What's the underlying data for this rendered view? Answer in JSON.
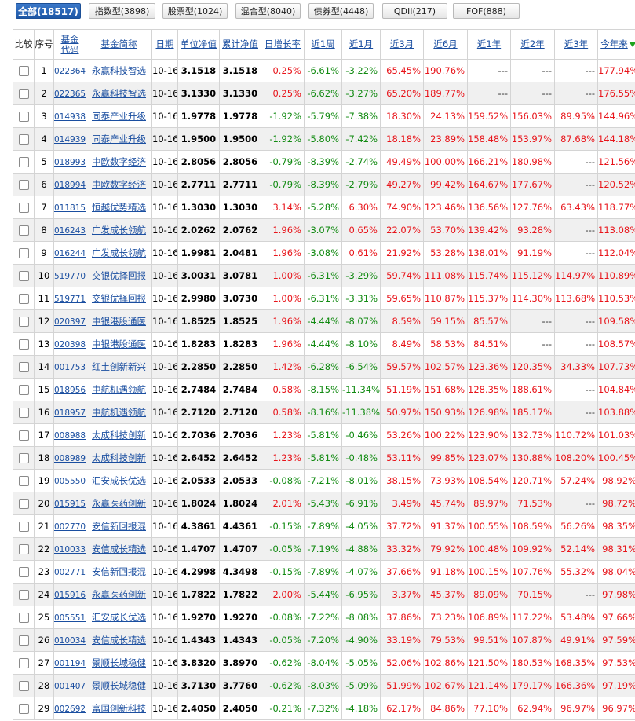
{
  "tabs": [
    {
      "id": "all",
      "label": "全部(18517)",
      "active": true
    },
    {
      "id": "index",
      "label": "指数型(3898)",
      "active": false
    },
    {
      "id": "stock",
      "label": "股票型(1024)",
      "active": false
    },
    {
      "id": "hybrid",
      "label": "混合型(8040)",
      "active": false
    },
    {
      "id": "bond",
      "label": "债券型(4448)",
      "active": false
    },
    {
      "id": "qdii",
      "label": "QDII(217)",
      "active": false
    },
    {
      "id": "fof",
      "label": "FOF(888)",
      "active": false
    }
  ],
  "headers": {
    "compare": "比较",
    "seq": "序号",
    "code": "基金代码",
    "name": "基金简称",
    "date": "日期",
    "nav": "单位净值",
    "acc_nav": "累计净值",
    "daily": "日增长率",
    "w1": "近1周",
    "m1": "近1月",
    "m3": "近3月",
    "m6": "近6月",
    "y1": "近1年",
    "y2": "近2年",
    "y3": "近3年",
    "ytd": "今年来"
  },
  "rows": [
    {
      "seq": "1",
      "code": "022364",
      "name": "永赢科技智选",
      "date": "10-16",
      "nav": "3.1518",
      "acc_nav": "3.1518",
      "daily": "0.25%",
      "w1": "-6.61%",
      "m1": "-3.22%",
      "m3": "65.45%",
      "m6": "190.76%",
      "y1": "---",
      "y2": "---",
      "y3": "---",
      "ytd": "177.94%"
    },
    {
      "seq": "2",
      "code": "022365",
      "name": "永赢科技智选",
      "date": "10-16",
      "nav": "3.1330",
      "acc_nav": "3.1330",
      "daily": "0.25%",
      "w1": "-6.62%",
      "m1": "-3.27%",
      "m3": "65.20%",
      "m6": "189.77%",
      "y1": "---",
      "y2": "---",
      "y3": "---",
      "ytd": "176.55%"
    },
    {
      "seq": "3",
      "code": "014938",
      "name": "同泰产业升级",
      "date": "10-16",
      "nav": "1.9778",
      "acc_nav": "1.9778",
      "daily": "-1.92%",
      "w1": "-5.79%",
      "m1": "-7.38%",
      "m3": "18.30%",
      "m6": "24.13%",
      "y1": "159.52%",
      "y2": "156.03%",
      "y3": "89.95%",
      "ytd": "144.96%"
    },
    {
      "seq": "4",
      "code": "014939",
      "name": "同泰产业升级",
      "date": "10-16",
      "nav": "1.9500",
      "acc_nav": "1.9500",
      "daily": "-1.92%",
      "w1": "-5.80%",
      "m1": "-7.42%",
      "m3": "18.18%",
      "m6": "23.89%",
      "y1": "158.48%",
      "y2": "153.97%",
      "y3": "87.68%",
      "ytd": "144.18%"
    },
    {
      "seq": "5",
      "code": "018993",
      "name": "中欧数字经济",
      "date": "10-16",
      "nav": "2.8056",
      "acc_nav": "2.8056",
      "daily": "-0.79%",
      "w1": "-8.39%",
      "m1": "-2.74%",
      "m3": "49.49%",
      "m6": "100.00%",
      "y1": "166.21%",
      "y2": "180.98%",
      "y3": "---",
      "ytd": "121.56%"
    },
    {
      "seq": "6",
      "code": "018994",
      "name": "中欧数字经济",
      "date": "10-16",
      "nav": "2.7711",
      "acc_nav": "2.7711",
      "daily": "-0.79%",
      "w1": "-8.39%",
      "m1": "-2.79%",
      "m3": "49.27%",
      "m6": "99.42%",
      "y1": "164.67%",
      "y2": "177.67%",
      "y3": "---",
      "ytd": "120.52%"
    },
    {
      "seq": "7",
      "code": "011815",
      "name": "恒越优势精选",
      "date": "10-16",
      "nav": "1.3030",
      "acc_nav": "1.3030",
      "daily": "3.14%",
      "w1": "-5.28%",
      "m1": "6.30%",
      "m3": "74.90%",
      "m6": "123.46%",
      "y1": "136.56%",
      "y2": "127.76%",
      "y3": "63.43%",
      "ytd": "118.77%"
    },
    {
      "seq": "8",
      "code": "016243",
      "name": "广发成长领航",
      "date": "10-16",
      "nav": "2.0262",
      "acc_nav": "2.0762",
      "daily": "1.96%",
      "w1": "-3.07%",
      "m1": "0.65%",
      "m3": "22.07%",
      "m6": "53.70%",
      "y1": "139.42%",
      "y2": "93.28%",
      "y3": "---",
      "ytd": "113.08%"
    },
    {
      "seq": "9",
      "code": "016244",
      "name": "广发成长领航",
      "date": "10-16",
      "nav": "1.9981",
      "acc_nav": "2.0481",
      "daily": "1.96%",
      "w1": "-3.08%",
      "m1": "0.61%",
      "m3": "21.92%",
      "m6": "53.28%",
      "y1": "138.01%",
      "y2": "91.19%",
      "y3": "---",
      "ytd": "112.04%"
    },
    {
      "seq": "10",
      "code": "519770",
      "name": "交银优择回报",
      "date": "10-16",
      "nav": "3.0031",
      "acc_nav": "3.0781",
      "daily": "1.00%",
      "w1": "-6.31%",
      "m1": "-3.29%",
      "m3": "59.74%",
      "m6": "111.08%",
      "y1": "115.74%",
      "y2": "115.12%",
      "y3": "114.97%",
      "ytd": "110.89%"
    },
    {
      "seq": "11",
      "code": "519771",
      "name": "交银优择回报",
      "date": "10-16",
      "nav": "2.9980",
      "acc_nav": "3.0730",
      "daily": "1.00%",
      "w1": "-6.31%",
      "m1": "-3.31%",
      "m3": "59.65%",
      "m6": "110.87%",
      "y1": "115.37%",
      "y2": "114.30%",
      "y3": "113.68%",
      "ytd": "110.53%"
    },
    {
      "seq": "12",
      "code": "020397",
      "name": "中银港股通医",
      "date": "10-16",
      "nav": "1.8525",
      "acc_nav": "1.8525",
      "daily": "1.96%",
      "w1": "-4.44%",
      "m1": "-8.07%",
      "m3": "8.59%",
      "m6": "59.15%",
      "y1": "85.57%",
      "y2": "---",
      "y3": "---",
      "ytd": "109.58%"
    },
    {
      "seq": "13",
      "code": "020398",
      "name": "中银港股通医",
      "date": "10-16",
      "nav": "1.8283",
      "acc_nav": "1.8283",
      "daily": "1.96%",
      "w1": "-4.44%",
      "m1": "-8.10%",
      "m3": "8.49%",
      "m6": "58.53%",
      "y1": "84.51%",
      "y2": "---",
      "y3": "---",
      "ytd": "108.57%"
    },
    {
      "seq": "14",
      "code": "001753",
      "name": "红土创新新兴",
      "date": "10-16",
      "nav": "2.2850",
      "acc_nav": "2.2850",
      "daily": "1.42%",
      "w1": "-6.28%",
      "m1": "-6.54%",
      "m3": "59.57%",
      "m6": "102.57%",
      "y1": "123.36%",
      "y2": "120.35%",
      "y3": "34.33%",
      "ytd": "107.73%"
    },
    {
      "seq": "15",
      "code": "018956",
      "name": "中航机遇领航",
      "date": "10-16",
      "nav": "2.7484",
      "acc_nav": "2.7484",
      "daily": "0.58%",
      "w1": "-8.15%",
      "m1": "-11.34%",
      "m3": "51.19%",
      "m6": "151.68%",
      "y1": "128.35%",
      "y2": "188.61%",
      "y3": "---",
      "ytd": "104.84%"
    },
    {
      "seq": "16",
      "code": "018957",
      "name": "中航机遇领航",
      "date": "10-16",
      "nav": "2.7120",
      "acc_nav": "2.7120",
      "daily": "0.58%",
      "w1": "-8.16%",
      "m1": "-11.38%",
      "m3": "50.97%",
      "m6": "150.93%",
      "y1": "126.98%",
      "y2": "185.17%",
      "y3": "---",
      "ytd": "103.88%"
    },
    {
      "seq": "17",
      "code": "008988",
      "name": "太成科技创新",
      "date": "10-16",
      "nav": "2.7036",
      "acc_nav": "2.7036",
      "daily": "1.23%",
      "w1": "-5.81%",
      "m1": "-0.46%",
      "m3": "53.26%",
      "m6": "100.22%",
      "y1": "123.90%",
      "y2": "132.73%",
      "y3": "110.72%",
      "ytd": "101.03%"
    },
    {
      "seq": "18",
      "code": "008989",
      "name": "太成科技创新",
      "date": "10-16",
      "nav": "2.6452",
      "acc_nav": "2.6452",
      "daily": "1.23%",
      "w1": "-5.81%",
      "m1": "-0.48%",
      "m3": "53.11%",
      "m6": "99.85%",
      "y1": "123.07%",
      "y2": "130.88%",
      "y3": "108.20%",
      "ytd": "100.45%"
    },
    {
      "seq": "19",
      "code": "005550",
      "name": "汇安成长优选",
      "date": "10-16",
      "nav": "2.0533",
      "acc_nav": "2.0533",
      "daily": "-0.08%",
      "w1": "-7.21%",
      "m1": "-8.01%",
      "m3": "38.15%",
      "m6": "73.93%",
      "y1": "108.54%",
      "y2": "120.71%",
      "y3": "57.24%",
      "ytd": "98.92%"
    },
    {
      "seq": "20",
      "code": "015915",
      "name": "永赢医药创新",
      "date": "10-16",
      "nav": "1.8024",
      "acc_nav": "1.8024",
      "daily": "2.01%",
      "w1": "-5.43%",
      "m1": "-6.91%",
      "m3": "3.49%",
      "m6": "45.74%",
      "y1": "89.97%",
      "y2": "71.53%",
      "y3": "---",
      "ytd": "98.72%"
    },
    {
      "seq": "21",
      "code": "002770",
      "name": "安信新回报混",
      "date": "10-16",
      "nav": "4.3861",
      "acc_nav": "4.4361",
      "daily": "-0.15%",
      "w1": "-7.89%",
      "m1": "-4.05%",
      "m3": "37.72%",
      "m6": "91.37%",
      "y1": "100.55%",
      "y2": "108.59%",
      "y3": "56.26%",
      "ytd": "98.35%"
    },
    {
      "seq": "22",
      "code": "010033",
      "name": "安信成长精选",
      "date": "10-16",
      "nav": "1.4707",
      "acc_nav": "1.4707",
      "daily": "-0.05%",
      "w1": "-7.19%",
      "m1": "-4.88%",
      "m3": "33.32%",
      "m6": "79.92%",
      "y1": "100.48%",
      "y2": "109.92%",
      "y3": "52.14%",
      "ytd": "98.31%"
    },
    {
      "seq": "23",
      "code": "002771",
      "name": "安信新回报混",
      "date": "10-16",
      "nav": "4.2998",
      "acc_nav": "4.3498",
      "daily": "-0.15%",
      "w1": "-7.89%",
      "m1": "-4.07%",
      "m3": "37.66%",
      "m6": "91.18%",
      "y1": "100.15%",
      "y2": "107.76%",
      "y3": "55.32%",
      "ytd": "98.04%"
    },
    {
      "seq": "24",
      "code": "015916",
      "name": "永赢医药创新",
      "date": "10-16",
      "nav": "1.7822",
      "acc_nav": "1.7822",
      "daily": "2.00%",
      "w1": "-5.44%",
      "m1": "-6.95%",
      "m3": "3.37%",
      "m6": "45.37%",
      "y1": "89.09%",
      "y2": "70.15%",
      "y3": "---",
      "ytd": "97.98%"
    },
    {
      "seq": "25",
      "code": "005551",
      "name": "汇安成长优选",
      "date": "10-16",
      "nav": "1.9270",
      "acc_nav": "1.9270",
      "daily": "-0.08%",
      "w1": "-7.22%",
      "m1": "-8.08%",
      "m3": "37.86%",
      "m6": "73.23%",
      "y1": "106.89%",
      "y2": "117.22%",
      "y3": "53.48%",
      "ytd": "97.66%"
    },
    {
      "seq": "26",
      "code": "010034",
      "name": "安信成长精选",
      "date": "10-16",
      "nav": "1.4343",
      "acc_nav": "1.4343",
      "daily": "-0.05%",
      "w1": "-7.20%",
      "m1": "-4.90%",
      "m3": "33.19%",
      "m6": "79.53%",
      "y1": "99.51%",
      "y2": "107.87%",
      "y3": "49.91%",
      "ytd": "97.59%"
    },
    {
      "seq": "27",
      "code": "001194",
      "name": "景顺长城稳健",
      "date": "10-16",
      "nav": "3.8320",
      "acc_nav": "3.8970",
      "daily": "-0.62%",
      "w1": "-8.04%",
      "m1": "-5.05%",
      "m3": "52.06%",
      "m6": "102.86%",
      "y1": "121.50%",
      "y2": "180.53%",
      "y3": "168.35%",
      "ytd": "97.53%"
    },
    {
      "seq": "28",
      "code": "001407",
      "name": "景顺长城稳健",
      "date": "10-16",
      "nav": "3.7130",
      "acc_nav": "3.7760",
      "daily": "-0.62%",
      "w1": "-8.03%",
      "m1": "-5.09%",
      "m3": "51.99%",
      "m6": "102.67%",
      "y1": "121.14%",
      "y2": "179.17%",
      "y3": "166.36%",
      "ytd": "97.19%"
    },
    {
      "seq": "29",
      "code": "002692",
      "name": "富国创新科技",
      "date": "10-16",
      "nav": "2.4050",
      "acc_nav": "2.4050",
      "daily": "-0.21%",
      "w1": "-7.32%",
      "m1": "-4.18%",
      "m3": "62.17%",
      "m6": "84.86%",
      "y1": "77.10%",
      "y2": "62.94%",
      "y3": "96.97%",
      "ytd": "96.97%"
    }
  ],
  "colors": {
    "positive": "#e8141a",
    "negative": "#118a11",
    "link": "#1a4ea0",
    "active_tab": "#1d57a6"
  }
}
